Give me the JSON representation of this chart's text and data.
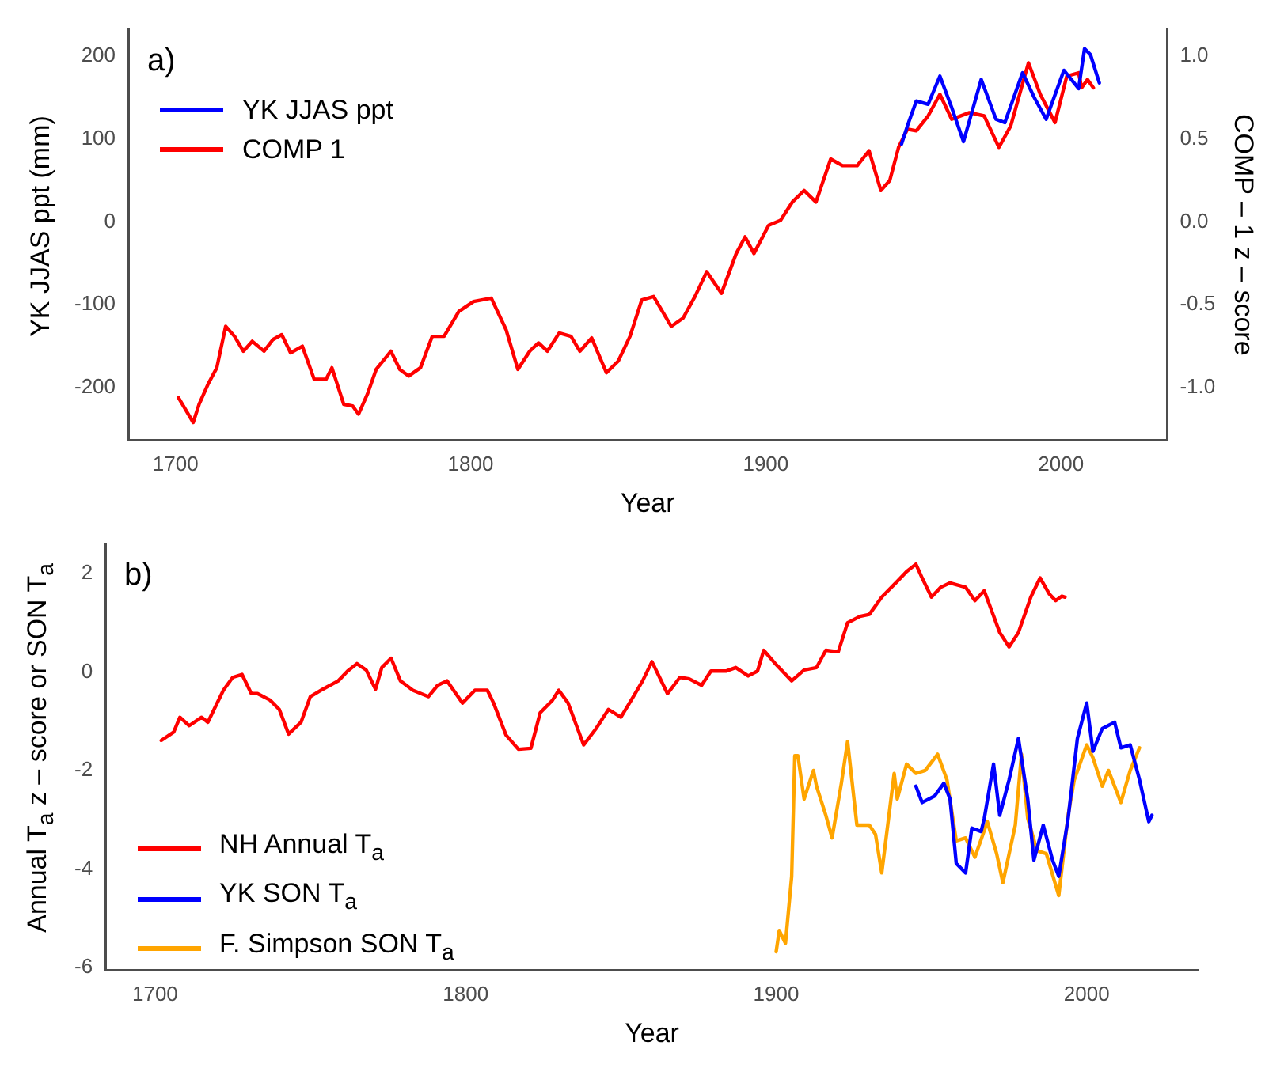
{
  "chart_data": [
    {
      "type": "line",
      "annotations": [
        "a)"
      ],
      "xlabel": "Year",
      "ylabel": "YK JJAS ppt (mm)",
      "y2label": "COMP – 1 z – score",
      "xlim": [
        1684,
        2036
      ],
      "xticks": [
        1700,
        1800,
        1900,
        2000
      ],
      "ylim": [
        -263,
        232
      ],
      "yticks": [
        -200,
        -100,
        0,
        100,
        200
      ],
      "y2lim": [
        -1.315,
        1.16
      ],
      "y2ticks": [
        {
          "value": -1,
          "label": "-1.0"
        },
        {
          "value": -0.5,
          "label": "-0.5"
        },
        {
          "value": 0,
          "label": "0.0"
        },
        {
          "value": 0.5,
          "label": "0.5"
        },
        {
          "value": 1,
          "label": "1.0"
        }
      ],
      "grid": false,
      "legend": "top left",
      "marker": "none",
      "line_style": "solid",
      "series": [
        {
          "name": "YK JJAS ppt",
          "color": "#0000ff",
          "x": [
            1946,
            1948,
            1951,
            1955,
            1959,
            1963,
            1967,
            1973,
            1978,
            1981,
            1987,
            1991,
            1995,
            2001,
            2006,
            2008,
            2010,
            2013
          ],
          "values": [
            94,
            116,
            146,
            142,
            176,
            138,
            97,
            172,
            124,
            120,
            180,
            150,
            124,
            183,
            161,
            209,
            202,
            168
          ]
        },
        {
          "name": "COMP 1",
          "color": "#ff0000",
          "axis": "y2",
          "x": [
            1701,
            1703,
            1706,
            1708,
            1711,
            1714,
            1717,
            1720,
            1723,
            1726,
            1730,
            1733,
            1736,
            1739,
            1743,
            1747,
            1751,
            1753,
            1757,
            1760,
            1762,
            1765,
            1768,
            1773,
            1776,
            1779,
            1783,
            1787,
            1791,
            1796,
            1801,
            1807,
            1812,
            1816,
            1820,
            1823,
            1826,
            1830,
            1834,
            1837,
            1841,
            1846,
            1850,
            1854,
            1858,
            1862,
            1868,
            1872,
            1876,
            1880,
            1885,
            1890,
            1893,
            1896,
            1901,
            1905,
            1909,
            1913,
            1917,
            1922,
            1926,
            1931,
            1935,
            1939,
            1942,
            1945,
            1948,
            1951,
            1955,
            1959,
            1963,
            1969,
            1974,
            1979,
            1983,
            1989,
            1993,
            1998,
            2002,
            2006,
            2007,
            2009,
            2011
          ],
          "values": [
            -1.06,
            -1.12,
            -1.21,
            -1.1,
            -0.98,
            -0.88,
            -0.63,
            -0.69,
            -0.78,
            -0.72,
            -0.78,
            -0.71,
            -0.68,
            -0.79,
            -0.75,
            -0.95,
            -0.95,
            -0.88,
            -1.1,
            -1.11,
            -1.16,
            -1.04,
            -0.89,
            -0.78,
            -0.89,
            -0.93,
            -0.88,
            -0.69,
            -0.69,
            -0.54,
            -0.48,
            -0.46,
            -0.65,
            -0.89,
            -0.78,
            -0.73,
            -0.78,
            -0.67,
            -0.69,
            -0.78,
            -0.7,
            -0.91,
            -0.84,
            -0.69,
            -0.47,
            -0.45,
            -0.63,
            -0.58,
            -0.45,
            -0.3,
            -0.43,
            -0.19,
            -0.09,
            -0.19,
            -0.02,
            0.01,
            0.12,
            0.19,
            0.12,
            0.38,
            0.34,
            0.34,
            0.43,
            0.19,
            0.25,
            0.45,
            0.56,
            0.55,
            0.64,
            0.77,
            0.62,
            0.66,
            0.64,
            0.45,
            0.58,
            0.96,
            0.77,
            0.6,
            0.88,
            0.9,
            0.81,
            0.86,
            0.81
          ]
        }
      ]
    },
    {
      "type": "line",
      "annotations": [
        "b)"
      ],
      "xlabel": "Year",
      "ylabel": "Annual T$_{a}$ z – score or SON T$_{a}$",
      "xlim": [
        1684,
        2036
      ],
      "xticks": [
        1700,
        1800,
        1900,
        2000
      ],
      "ylim": [
        -6.05,
        2.6
      ],
      "yticks": [
        -6,
        -4,
        -2,
        0,
        2
      ],
      "grid": false,
      "legend": "bottom left",
      "marker": "none",
      "line_style": "solid",
      "series": [
        {
          "name": "NH Annual T$_{a}$",
          "color": "#ff0000",
          "x": [
            1702,
            1706,
            1708,
            1711,
            1715,
            1717,
            1719,
            1722,
            1725,
            1728,
            1731,
            1733,
            1737,
            1740,
            1743,
            1747,
            1750,
            1754,
            1759,
            1762,
            1765,
            1768,
            1771,
            1773,
            1776,
            1779,
            1783,
            1788,
            1791,
            1794,
            1799,
            1803,
            1807,
            1809,
            1813,
            1817,
            1821,
            1824,
            1828,
            1830,
            1833,
            1838,
            1842,
            1846,
            1850,
            1854,
            1857,
            1860,
            1862,
            1865,
            1869,
            1872,
            1876,
            1879,
            1884,
            1887,
            1891,
            1894,
            1896,
            1900,
            1905,
            1909,
            1913,
            1916,
            1920,
            1923,
            1927,
            1930,
            1934,
            1939,
            1942,
            1945,
            1947,
            1950,
            1953,
            1956,
            1961,
            1964,
            1967,
            1972,
            1975,
            1978,
            1982,
            1985,
            1988,
            1990,
            1992,
            1993
          ],
          "values": [
            -1.39,
            -1.22,
            -0.92,
            -1.09,
            -0.92,
            -1.02,
            -0.76,
            -0.37,
            -0.11,
            -0.05,
            -0.44,
            -0.44,
            -0.57,
            -0.76,
            -1.26,
            -1.02,
            -0.5,
            -0.35,
            -0.18,
            0.02,
            0.17,
            0.04,
            -0.35,
            0.09,
            0.28,
            -0.18,
            -0.37,
            -0.5,
            -0.27,
            -0.18,
            -0.63,
            -0.37,
            -0.37,
            -0.63,
            -1.28,
            -1.57,
            -1.55,
            -0.83,
            -0.57,
            -0.37,
            -0.63,
            -1.48,
            -1.15,
            -0.76,
            -0.92,
            -0.5,
            -0.18,
            0.21,
            -0.05,
            -0.44,
            -0.11,
            -0.14,
            -0.27,
            0.02,
            0.02,
            0.09,
            -0.08,
            0.02,
            0.44,
            0.15,
            -0.18,
            0.04,
            0.09,
            0.44,
            0.41,
            1.0,
            1.13,
            1.17,
            1.52,
            1.84,
            2.04,
            2.19,
            1.91,
            1.52,
            1.72,
            1.81,
            1.72,
            1.45,
            1.65,
            0.8,
            0.51,
            0.8,
            1.52,
            1.91,
            1.58,
            1.45,
            1.54,
            1.52
          ]
        },
        {
          "name": "YK SON T$_{a}$",
          "color": "#0000ff",
          "x": [
            1945,
            1947,
            1951,
            1954,
            1956,
            1958,
            1961,
            1963,
            1966,
            1967,
            1970,
            1972,
            1975,
            1978,
            1981,
            1983,
            1986,
            1989,
            1991,
            1994,
            1997,
            2000,
            2002,
            2005,
            2009,
            2011,
            2014,
            2017,
            2020,
            2021
          ],
          "values": [
            -2.32,
            -2.65,
            -2.52,
            -2.26,
            -2.58,
            -3.89,
            -4.08,
            -3.17,
            -3.24,
            -2.98,
            -1.87,
            -2.91,
            -2.19,
            -1.35,
            -2.58,
            -3.82,
            -3.11,
            -3.82,
            -4.15,
            -2.98,
            -1.35,
            -0.63,
            -1.61,
            -1.15,
            -1.02,
            -1.54,
            -1.48,
            -2.19,
            -3.04,
            -2.91
          ]
        },
        {
          "name": "F. Simpson  SON T$_{a}$",
          "color": "#ffa500",
          "x": [
            1900,
            1901,
            1903,
            1905,
            1906,
            1907,
            1909,
            1912,
            1913,
            1916,
            1918,
            1921,
            1923,
            1926,
            1930,
            1932,
            1934,
            1938,
            1939,
            1942,
            1945,
            1948,
            1952,
            1955,
            1958,
            1961,
            1964,
            1968,
            1971,
            1973,
            1977,
            1979,
            1981,
            1984,
            1987,
            1991,
            1994,
            1996,
            2000,
            2002,
            2005,
            2007,
            2011,
            2014,
            2017
          ],
          "values": [
            -5.68,
            -5.25,
            -5.51,
            -4.15,
            -1.7,
            -1.7,
            -2.58,
            -2.0,
            -2.32,
            -2.91,
            -3.37,
            -2.26,
            -1.41,
            -3.11,
            -3.11,
            -3.3,
            -4.08,
            -2.06,
            -2.58,
            -1.87,
            -2.06,
            -2.0,
            -1.67,
            -2.19,
            -3.43,
            -3.37,
            -3.76,
            -3.04,
            -3.69,
            -4.28,
            -3.11,
            -1.67,
            -2.97,
            -3.63,
            -3.69,
            -4.54,
            -2.91,
            -2.19,
            -1.48,
            -1.74,
            -2.32,
            -2.0,
            -2.65,
            -2.0,
            -1.54
          ]
        }
      ]
    }
  ]
}
